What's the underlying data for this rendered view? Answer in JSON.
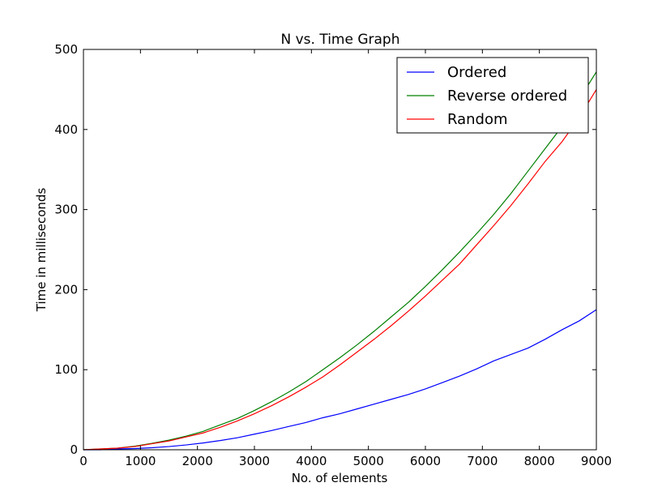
{
  "chart_data": {
    "type": "line",
    "title": "N vs. Time Graph",
    "xlabel": "No. of elements",
    "ylabel": "Time in milliseconds",
    "xlim": [
      0,
      9000
    ],
    "ylim": [
      0,
      500
    ],
    "xticks": [
      0,
      1000,
      2000,
      3000,
      4000,
      5000,
      6000,
      7000,
      8000,
      9000
    ],
    "yticks": [
      0,
      100,
      200,
      300,
      400,
      500
    ],
    "grid": false,
    "legend_position": "top-right",
    "series": [
      {
        "name": "Ordered",
        "color": "#0000ff",
        "x": [
          0,
          300,
          600,
          900,
          1200,
          1500,
          1800,
          2100,
          2400,
          2700,
          3000,
          3300,
          3600,
          3900,
          4200,
          4500,
          4800,
          5100,
          5400,
          5700,
          6000,
          6300,
          6600,
          6900,
          7200,
          7500,
          7800,
          8100,
          8400,
          8700,
          9000
        ],
        "y": [
          0,
          0,
          1,
          1.5,
          2.5,
          4,
          6,
          8.5,
          11.5,
          15,
          19.5,
          24,
          29,
          34,
          40,
          45,
          51,
          57,
          63,
          69,
          76,
          84,
          92,
          101,
          111,
          119,
          127,
          138,
          150,
          161,
          175
        ]
      },
      {
        "name": "Reverse ordered",
        "color": "#008000",
        "x": [
          0,
          300,
          600,
          900,
          1200,
          1500,
          1800,
          2100,
          2400,
          2700,
          3000,
          3300,
          3600,
          3900,
          4200,
          4500,
          4800,
          5100,
          5400,
          5700,
          6000,
          6300,
          6600,
          6900,
          7200,
          7500,
          7800,
          8100,
          8400,
          8700,
          9000
        ],
        "y": [
          0,
          1,
          2,
          4.5,
          8,
          12,
          17,
          23,
          31,
          39,
          49,
          60,
          72,
          85,
          100,
          115,
          131,
          148,
          166,
          184,
          204,
          225,
          247,
          270,
          294,
          320,
          348,
          376,
          404,
          438,
          472
        ]
      },
      {
        "name": "Random",
        "color": "#ff0000",
        "x": [
          0,
          300,
          600,
          900,
          1200,
          1500,
          1800,
          2100,
          2400,
          2700,
          3000,
          3300,
          3600,
          3900,
          4200,
          4500,
          4800,
          5100,
          5400,
          5700,
          6000,
          6300,
          6600,
          6900,
          7200,
          7500,
          7800,
          8100,
          8400,
          8700,
          9000
        ],
        "y": [
          0,
          1,
          2,
          4,
          7.5,
          11,
          16,
          21,
          28,
          36,
          45,
          55,
          66,
          78,
          91,
          106,
          122,
          138,
          155,
          173,
          192,
          212,
          232,
          256,
          280,
          305,
          332,
          360,
          385,
          415,
          450
        ]
      }
    ]
  }
}
